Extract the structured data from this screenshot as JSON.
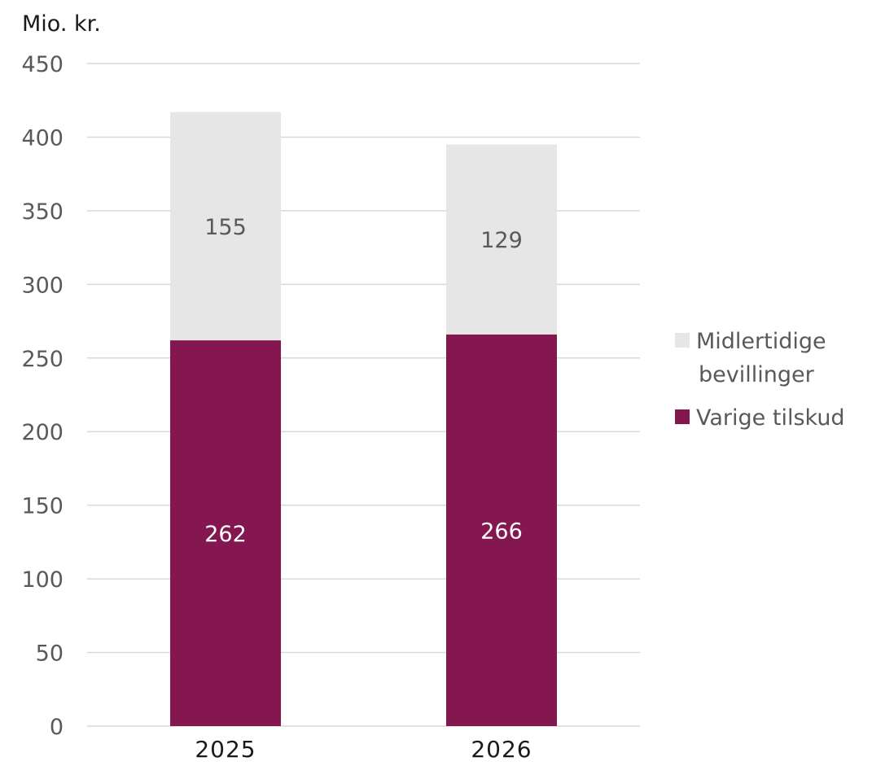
{
  "chart_data": {
    "type": "bar",
    "stacked": true,
    "ylabel": "Mio. kr.",
    "categories": [
      "2025",
      "2026"
    ],
    "series": [
      {
        "name": "Varige tilskud",
        "values": [
          262,
          266
        ],
        "color": "#84174f"
      },
      {
        "name": "Midlertidige bevillinger",
        "values": [
          155,
          129
        ],
        "color": "#e6e6e6"
      }
    ],
    "ylim": [
      0,
      450
    ],
    "yticks": [
      0,
      50,
      100,
      150,
      200,
      250,
      300,
      350,
      400,
      450
    ],
    "grid": true,
    "legend": {
      "position": "right",
      "entries": [
        {
          "lines": [
            "Midlertidige",
            "bevillinger"
          ],
          "color": "#e6e6e6"
        },
        {
          "lines": [
            "Varige tilskud"
          ],
          "color": "#84174f"
        }
      ]
    }
  }
}
